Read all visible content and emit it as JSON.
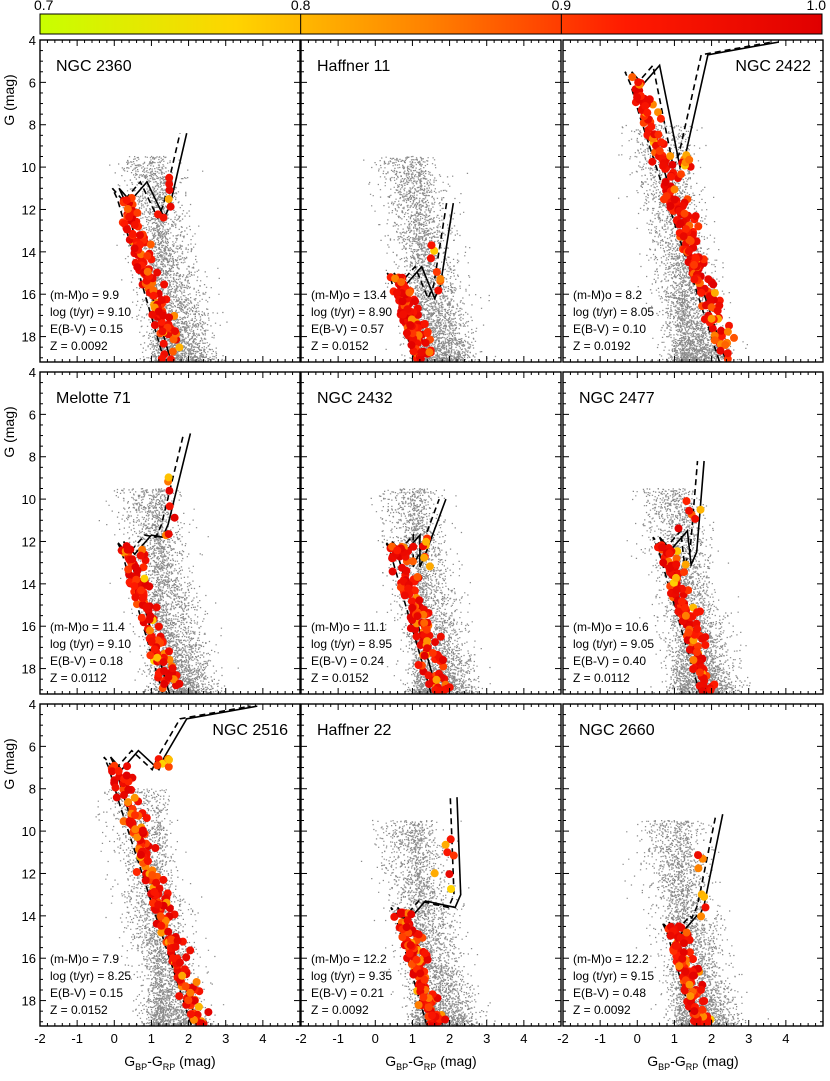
{
  "colorbar": {
    "ticks": [
      "0.7",
      "0.8",
      "0.9",
      "1.0"
    ],
    "range": [
      0.7,
      1.0
    ],
    "colors": [
      "#c8ff00",
      "#ffd400",
      "#ff8000",
      "#ff1a00",
      "#e00000"
    ]
  },
  "axes": {
    "xlabel_prefix": "G",
    "xlabel_bp": "BP",
    "xlabel_dash": "-G",
    "xlabel_rp": "RP",
    "xlabel_suffix": " (mag)",
    "ylabel": "G (mag)",
    "xlim": [
      -2,
      5
    ],
    "ylim": [
      19.2,
      4
    ],
    "xticks": [
      "-2",
      "-1",
      "0",
      "1",
      "2",
      "3",
      "4"
    ],
    "yticks": [
      "4",
      "6",
      "8",
      "10",
      "12",
      "14",
      "16",
      "18"
    ]
  },
  "param_labels": {
    "dm": "(m-M)o = ",
    "age": "log (t/yr) = ",
    "ebv": "E(B-V) = ",
    "z": "Z = "
  },
  "chart_data": [
    {
      "type": "scatter",
      "title": "NGC 2360",
      "title_pos": "left",
      "dm": "9.9",
      "age": "9.10",
      "ebv": "0.15",
      "z": "0.0092",
      "ms_top": 11.0,
      "tx": 0.18,
      "bright": false,
      "rgb": [
        1.35,
        10.2,
        1.5,
        11.8
      ],
      "seed": 11
    },
    {
      "type": "scatter",
      "title": "Haffner 11",
      "title_pos": "left",
      "dm": "13.4",
      "age": "8.90",
      "ebv": "0.57",
      "z": "0.0152",
      "ms_top": 15.0,
      "tx": 0.55,
      "bright": false,
      "rgb": [
        1.5,
        13.5,
        1.75,
        15.6
      ],
      "seed": 22
    },
    {
      "type": "scatter",
      "title": "NGC 2422",
      "title_pos": "right",
      "dm": "8.2",
      "age": "8.05",
      "ebv": "0.10",
      "z": "0.0192",
      "ms_top": 5.5,
      "tx": -0.1,
      "bright": true,
      "rgb": [
        1.3,
        9.4,
        1.3,
        9.4
      ],
      "seed": 33
    },
    {
      "type": "scatter",
      "title": "Melotte 71",
      "title_pos": "left",
      "dm": "11.4",
      "age": "9.10",
      "ebv": "0.18",
      "z": "0.0112",
      "ms_top": 12.0,
      "tx": 0.3,
      "bright": false,
      "rgb": [
        1.45,
        8.7,
        1.45,
        11.2
      ],
      "seed": 44
    },
    {
      "type": "scatter",
      "title": "NGC 2432",
      "title_pos": "left",
      "dm": "11.1",
      "age": "8.95",
      "ebv": "0.24",
      "z": "0.0152",
      "ms_top": 12.0,
      "tx": 0.5,
      "bright": false,
      "rgb": [
        1.3,
        11.8,
        1.35,
        12.6
      ],
      "seed": 55
    },
    {
      "type": "scatter",
      "title": "NGC 2477",
      "title_pos": "left",
      "dm": "10.6",
      "age": "9.05",
      "ebv": "0.40",
      "z": "0.0112",
      "ms_top": 11.8,
      "tx": 0.65,
      "bright": false,
      "rgb": [
        1.2,
        10.0,
        1.6,
        12.5
      ],
      "seed": 66
    },
    {
      "type": "scatter",
      "title": "NGC 2516",
      "title_pos": "right",
      "dm": "7.9",
      "age": "8.25",
      "ebv": "0.15",
      "z": "0.0152",
      "ms_top": 6.5,
      "tx": -0.05,
      "bright": true,
      "rgb": [
        1.35,
        6.5,
        1.35,
        6.5
      ],
      "seed": 77
    },
    {
      "type": "scatter",
      "title": "Haffner 22",
      "title_pos": "left",
      "dm": "12.2",
      "age": "9.35",
      "ebv": "0.21",
      "z": "0.0092",
      "ms_top": 13.6,
      "tx": 0.65,
      "bright": false,
      "rgb": [
        1.6,
        10.2,
        2.3,
        13.0
      ],
      "seed": 88
    },
    {
      "type": "scatter",
      "title": "NGC 2660",
      "title_pos": "left",
      "dm": "12.2",
      "age": "9.15",
      "ebv": "0.48",
      "z": "0.0092",
      "ms_top": 14.3,
      "tx": 0.9,
      "bright": false,
      "rgb": [
        1.7,
        11.0,
        1.8,
        13.5
      ],
      "seed": 99
    }
  ]
}
